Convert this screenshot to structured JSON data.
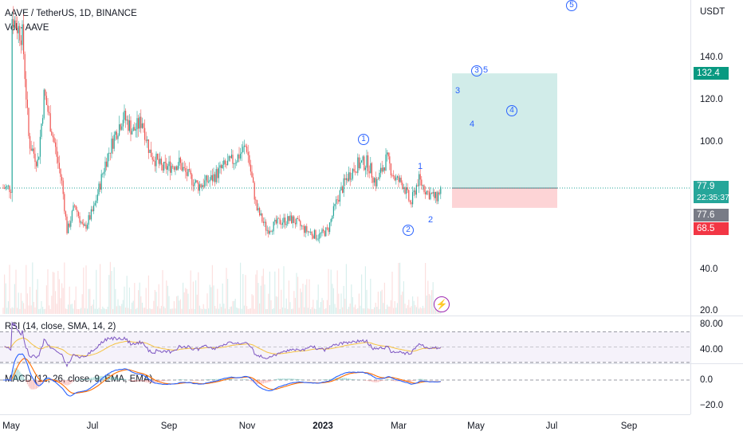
{
  "legend": {
    "symbol": "AAVE / TetherUS, 1D, BINANCE",
    "volume": "Vol · AAVE",
    "rsi": "RSI (14, close, SMA, 14, 2)",
    "macd": "MACD (12, 26, close, 9, EMA, EMA)"
  },
  "currency": "USDT",
  "price_axis": [
    "140.0",
    "120.0",
    "100.0",
    "40.0",
    "20.0"
  ],
  "price_tags": {
    "target": "132.4",
    "last": "77.9",
    "countdown": "22:35:37",
    "prev": "77.6",
    "stop": "68.5"
  },
  "rsi_axis": [
    "80.00",
    "40.00"
  ],
  "macd_axis": [
    "0.0",
    "−20.0"
  ],
  "time_axis": [
    {
      "label": "May",
      "bold": false
    },
    {
      "label": "Jul",
      "bold": false
    },
    {
      "label": "Sep",
      "bold": false
    },
    {
      "label": "Nov",
      "bold": false
    },
    {
      "label": "2023",
      "bold": true
    },
    {
      "label": "Mar",
      "bold": false
    },
    {
      "label": "May",
      "bold": false
    },
    {
      "label": "Jul",
      "bold": false
    },
    {
      "label": "Sep",
      "bold": false
    }
  ],
  "wave_labels": {
    "circ1": "1",
    "circ2": "2",
    "circ3": "3",
    "circ4": "4",
    "circ5": "5",
    "n1": "1",
    "n2": "2",
    "n3": "3",
    "n4": "4",
    "n5": "5"
  },
  "colors": {
    "up": "#26a69a",
    "down": "#ef5350",
    "rsi": "#7e57c2",
    "rsi_ma": "#f5c342",
    "macd": "#2962ff",
    "signal": "#ff6d00",
    "target_zone": "#b2dfdb",
    "stop_zone": "#fcc9cc"
  },
  "chart_data": {
    "type": "candlestick",
    "price_path": [
      [
        "2022-05-01",
        160
      ],
      [
        "2022-05-10",
        150
      ],
      [
        "2022-05-15",
        100
      ],
      [
        "2022-05-22",
        90
      ],
      [
        "2022-05-27",
        123
      ],
      [
        "2022-06-03",
        102
      ],
      [
        "2022-06-10",
        80
      ],
      [
        "2022-06-14",
        57
      ],
      [
        "2022-06-20",
        70
      ],
      [
        "2022-06-27",
        58
      ],
      [
        "2022-07-05",
        68
      ],
      [
        "2022-07-14",
        90
      ],
      [
        "2022-07-22",
        104
      ],
      [
        "2022-07-28",
        112
      ],
      [
        "2022-08-05",
        105
      ],
      [
        "2022-08-12",
        110
      ],
      [
        "2022-08-18",
        95
      ],
      [
        "2022-08-28",
        87
      ],
      [
        "2022-09-10",
        90
      ],
      [
        "2022-09-15",
        85
      ],
      [
        "2022-09-25",
        79
      ],
      [
        "2022-10-05",
        82
      ],
      [
        "2022-10-15",
        88
      ],
      [
        "2022-10-25",
        92
      ],
      [
        "2022-11-02",
        98
      ],
      [
        "2022-11-10",
        68
      ],
      [
        "2022-11-18",
        58
      ],
      [
        "2022-11-28",
        62
      ],
      [
        "2022-12-08",
        63
      ],
      [
        "2022-12-18",
        58
      ],
      [
        "2022-12-28",
        55
      ],
      [
        "2023-01-05",
        58
      ],
      [
        "2023-01-12",
        72
      ],
      [
        "2023-01-20",
        83
      ],
      [
        "2023-01-28",
        89
      ],
      [
        "2023-02-05",
        90
      ],
      [
        "2023-02-12",
        80
      ],
      [
        "2023-02-20",
        92
      ],
      [
        "2023-02-27",
        82
      ],
      [
        "2023-03-05",
        80
      ],
      [
        "2023-03-11",
        70
      ],
      [
        "2023-03-17",
        82
      ],
      [
        "2023-03-24",
        76
      ],
      [
        "2023-03-31",
        73
      ],
      [
        "2023-04-04",
        78
      ]
    ],
    "position_tool": {
      "entry": 77.9,
      "target": 132.4,
      "stop": 68.5
    },
    "y_axis_labels": [
      140,
      120,
      100,
      40,
      20
    ],
    "rsi": {
      "levels": [
        80,
        40
      ]
    },
    "macd": {
      "levels": [
        0,
        -20
      ]
    }
  }
}
